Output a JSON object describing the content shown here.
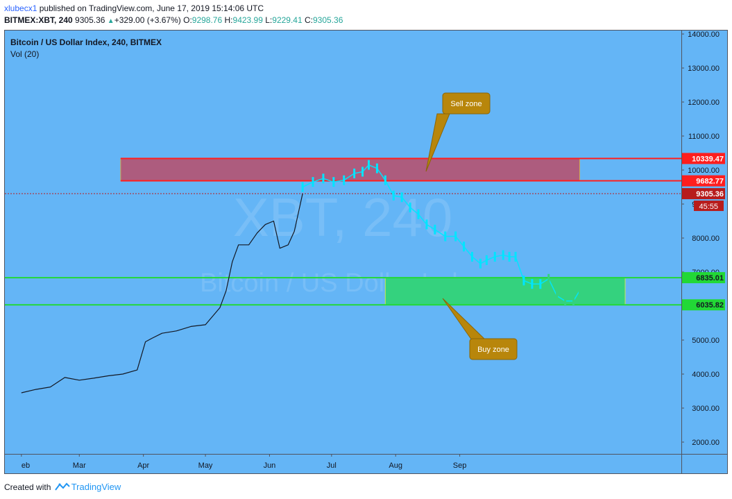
{
  "header": {
    "user": "xlubecx1",
    "published": "published on TradingView.com, June 17, 2019 15:14:06 UTC",
    "symbol": "BITMEX:XBT, 240",
    "last": "9305.36",
    "change": "+329.00 (+3.67%)",
    "open_label": "O:",
    "open": "9298.76",
    "high_label": "H:",
    "high": "9423.99",
    "low_label": "L:",
    "low": "9229.41",
    "close_label": "C:",
    "close": "9305.36"
  },
  "pane": {
    "title": "Bitcoin / US Dollar Index, 240, BITMEX",
    "indicator": "Vol (20)",
    "watermark_line1": "XBT, 240",
    "watermark_line2": "Bitcoin / US Dollar Index",
    "countdown": "45:55"
  },
  "footer": {
    "created_with": "Created with",
    "brand": "TradingView"
  },
  "colors": {
    "pane_bg": "#64b5f6",
    "sell_zone": "#ad5c7e",
    "buy_zone": "#34d27e",
    "red_line": "#ff1e1e",
    "green_line": "#22d836",
    "callout": "#b8860b",
    "price_line": "#131722",
    "projection": "#00e5ff"
  },
  "chart_data": {
    "type": "line",
    "y_axis": {
      "ylim": [
        1500,
        14300
      ],
      "ticks": [
        2000,
        3000,
        4000,
        5000,
        6000,
        7000,
        8000,
        9000,
        10000,
        11000,
        12000,
        13000,
        14000
      ],
      "tick_labels": [
        "2000.00",
        "3000.00",
        "4000.00",
        "5000.00",
        "",
        "7000.00",
        "8000.00",
        "9000.00",
        "10000.00",
        "11000.00",
        "12000.00",
        "13000.00",
        "14000.00"
      ]
    },
    "x_axis": {
      "labels": [
        "eb",
        "Mar",
        "Apr",
        "May",
        "Jun",
        "Jul",
        "Aug",
        "Sep"
      ],
      "dates": [
        "2019-02-01",
        "2019-03-01",
        "2019-04-01",
        "2019-05-01",
        "2019-06-01",
        "2019-07-01",
        "2019-08-01",
        "2019-09-01"
      ]
    },
    "series": [
      {
        "x": [
          "2019-02-01",
          "2019-02-08",
          "2019-02-15",
          "2019-02-22",
          "2019-03-01",
          "2019-03-08",
          "2019-03-15",
          "2019-03-22",
          "2019-03-29",
          "2019-04-02",
          "2019-04-05",
          "2019-04-10",
          "2019-04-17",
          "2019-04-24",
          "2019-05-01",
          "2019-05-08",
          "2019-05-11",
          "2019-05-14",
          "2019-05-17",
          "2019-05-22",
          "2019-05-26",
          "2019-05-30",
          "2019-06-03",
          "2019-06-06",
          "2019-06-10",
          "2019-06-13",
          "2019-06-17"
        ],
        "y": [
          3450,
          3550,
          3620,
          3900,
          3820,
          3880,
          3950,
          4000,
          4120,
          4950,
          5050,
          5200,
          5270,
          5400,
          5450,
          5950,
          6450,
          7300,
          7800,
          7800,
          8150,
          8400,
          8500,
          7700,
          7800,
          8200,
          9305
        ]
      },
      {
        "x": [
          "2019-06-17",
          "2019-06-22",
          "2019-06-27",
          "2019-07-02",
          "2019-07-07",
          "2019-07-12",
          "2019-07-16",
          "2019-07-19",
          "2019-07-23",
          "2019-07-27",
          "2019-07-31",
          "2019-08-04",
          "2019-08-08",
          "2019-08-12",
          "2019-08-16",
          "2019-08-20",
          "2019-08-25",
          "2019-08-30",
          "2019-09-03",
          "2019-09-07",
          "2019-09-11",
          "2019-09-14",
          "2019-09-18",
          "2019-09-22",
          "2019-09-25",
          "2019-09-28",
          "2019-10-02",
          "2019-10-06",
          "2019-10-10",
          "2019-10-14",
          "2019-10-18",
          "2019-10-22",
          "2019-10-26",
          "2019-10-29"
        ],
        "y": [
          9500,
          9650,
          9750,
          9650,
          9700,
          9900,
          9950,
          10150,
          10050,
          9700,
          9250,
          9200,
          8900,
          8700,
          8400,
          8250,
          8050,
          8050,
          7750,
          7450,
          7250,
          7350,
          7450,
          7500,
          7450,
          7450,
          6750,
          6650,
          6650,
          6800,
          6300,
          6150,
          6150,
          6450
        ]
      }
    ],
    "levels": [
      {
        "value": 10339.47,
        "label": "10339.47"
      },
      {
        "value": 9682.77,
        "label": "9682.77"
      },
      {
        "value": 9305.36,
        "label": "9305.36"
      },
      {
        "value": 6835.01,
        "label": "6835.01"
      },
      {
        "value": 6035.82,
        "label": "6035.82"
      }
    ],
    "zones": [
      {
        "label": "Sell zone",
        "from": 9682.77,
        "to": 10339.47,
        "start": "2019-03-21",
        "end": "2019-10-29"
      },
      {
        "label": "Buy zone",
        "from": 6035.82,
        "to": 6835.01,
        "start": "2019-07-27",
        "end": "2019-11-20"
      }
    ]
  }
}
